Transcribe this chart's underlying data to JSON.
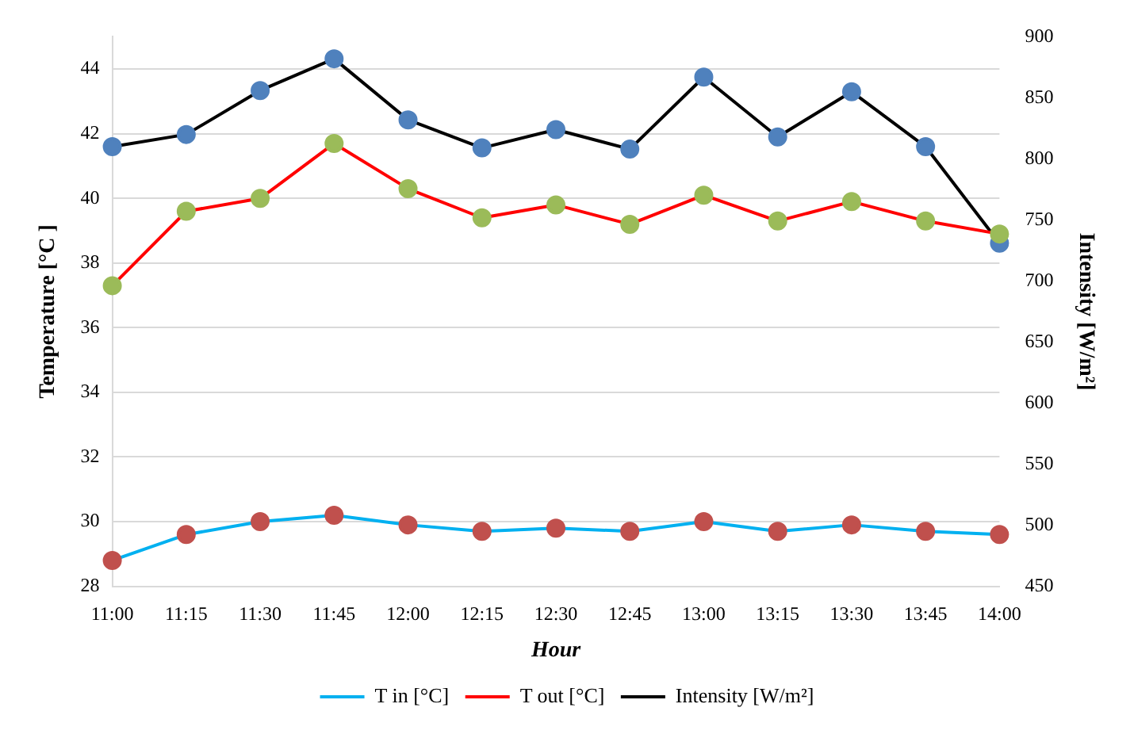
{
  "chart_data": {
    "type": "line",
    "xlabel": "Hour",
    "ylabel": "Temperature [°C ]",
    "y2label": "Intensity [W/m²]",
    "categories": [
      "11:00",
      "11:15",
      "11:30",
      "11:45",
      "12:00",
      "12:15",
      "12:30",
      "12:45",
      "13:00",
      "13:15",
      "13:30",
      "13:45",
      "14:00"
    ],
    "series": [
      {
        "name": "T in [°C]",
        "color": "#00b0f0",
        "colors": [
          "#c0504d",
          "#c0504d",
          "#c0504d",
          "#c0504d",
          "#c0504d",
          "#c0504d",
          "#c0504d",
          "#c0504d",
          "#c0504d",
          "#c0504d",
          "#c0504d",
          "#c0504d",
          "#c0504d"
        ],
        "values": [
          28.8,
          29.6,
          30.0,
          30.2,
          29.9,
          29.7,
          29.8,
          29.7,
          30.0,
          29.7,
          29.9,
          29.7,
          29.6
        ]
      },
      {
        "name": "T out [°C]",
        "color": "#ff0000",
        "colors": [
          "#9bbb59",
          "#9bbb59",
          "#9bbb59",
          "#9bbb59",
          "#9bbb59",
          "#9bbb59",
          "#9bbb59",
          "#9bbb59",
          "#9bbb59",
          "#9bbb59",
          "#9bbb59",
          "#9bbb59",
          "#9bbb59"
        ],
        "values": [
          37.3,
          39.6,
          40.0,
          41.7,
          40.3,
          39.4,
          39.8,
          39.2,
          40.1,
          39.3,
          39.9,
          39.3,
          38.9
        ]
      },
      {
        "name": "Intensity [W/m²]",
        "axis": "y2",
        "color": "#000000",
        "colors": [
          "#4f81bd",
          "#4f81bd",
          "#4f81bd",
          "#4f81bd",
          "#4f81bd",
          "#4f81bd",
          "#4f81bd",
          "#4f81bd",
          "#4f81bd",
          "#4f81bd",
          "#4f81bd",
          "#4f81bd",
          "#4f81bd"
        ],
        "values": [
          810,
          820,
          856,
          882,
          832,
          809,
          824,
          808,
          867,
          818,
          855,
          810,
          731
        ]
      }
    ],
    "ylim": [
      28,
      45
    ],
    "yticks": [
      28,
      30,
      32,
      34,
      36,
      38,
      40,
      42,
      44
    ],
    "y2lim": [
      450,
      900
    ],
    "y2ticks": [
      450,
      500,
      550,
      600,
      650,
      700,
      750,
      800,
      850,
      900
    ],
    "grid": "y",
    "legend": "bottom",
    "marker": "circle",
    "line_style": "solid"
  }
}
